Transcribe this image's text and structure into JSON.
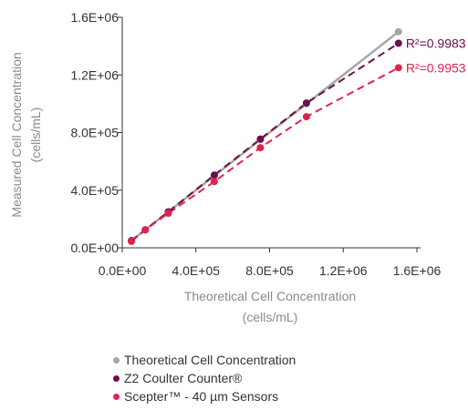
{
  "chart_data": {
    "type": "line",
    "xlabel": [
      "Theoretical Cell Concentration",
      "(cells/mL)"
    ],
    "ylabel": [
      "Measured Cell Concentration",
      "(cells/mL)"
    ],
    "xlim": [
      0,
      1600000
    ],
    "ylim": [
      0,
      1600000
    ],
    "x_ticks": [
      0,
      400000,
      800000,
      1200000,
      1600000
    ],
    "x_tick_labels": [
      "0.0E+00",
      "4.0E+05",
      "8.0E+05",
      "1.2E+06",
      "1.6E+06"
    ],
    "y_ticks": [
      0,
      400000,
      800000,
      1200000,
      1600000
    ],
    "y_tick_labels": [
      "0.0E+00",
      "4.0E+05",
      "8.0E+05",
      "1.2E+06",
      "1.6E+06"
    ],
    "legend_position": "bottom",
    "series": [
      {
        "name": "Theoretical Cell Concentration",
        "color": "#a6a6a6",
        "line_style": "solid",
        "points": [
          [
            50000,
            50000
          ],
          [
            250000,
            250000
          ],
          [
            500000,
            500000
          ],
          [
            750000,
            750000
          ],
          [
            1000000,
            1000000
          ],
          [
            1500000,
            1500000
          ]
        ]
      },
      {
        "name": "Z2 Coulter Counter®",
        "color": "#6b0f4e",
        "line_style": "dashed",
        "annotation": "R²=0.9983",
        "points": [
          [
            50000,
            50000
          ],
          [
            125000,
            125000
          ],
          [
            250000,
            250000
          ],
          [
            500000,
            505000
          ],
          [
            750000,
            755000
          ],
          [
            1000000,
            1005000
          ],
          [
            1500000,
            1420000
          ]
        ]
      },
      {
        "name": "Scepter™ - 40 µm Sensors",
        "color": "#e0234e",
        "line_style": "dashed",
        "annotation": "R²=0.9953",
        "points": [
          [
            50000,
            45000
          ],
          [
            125000,
            125000
          ],
          [
            250000,
            240000
          ],
          [
            500000,
            460000
          ],
          [
            750000,
            695000
          ],
          [
            1000000,
            910000
          ],
          [
            1500000,
            1250000
          ]
        ]
      }
    ]
  }
}
